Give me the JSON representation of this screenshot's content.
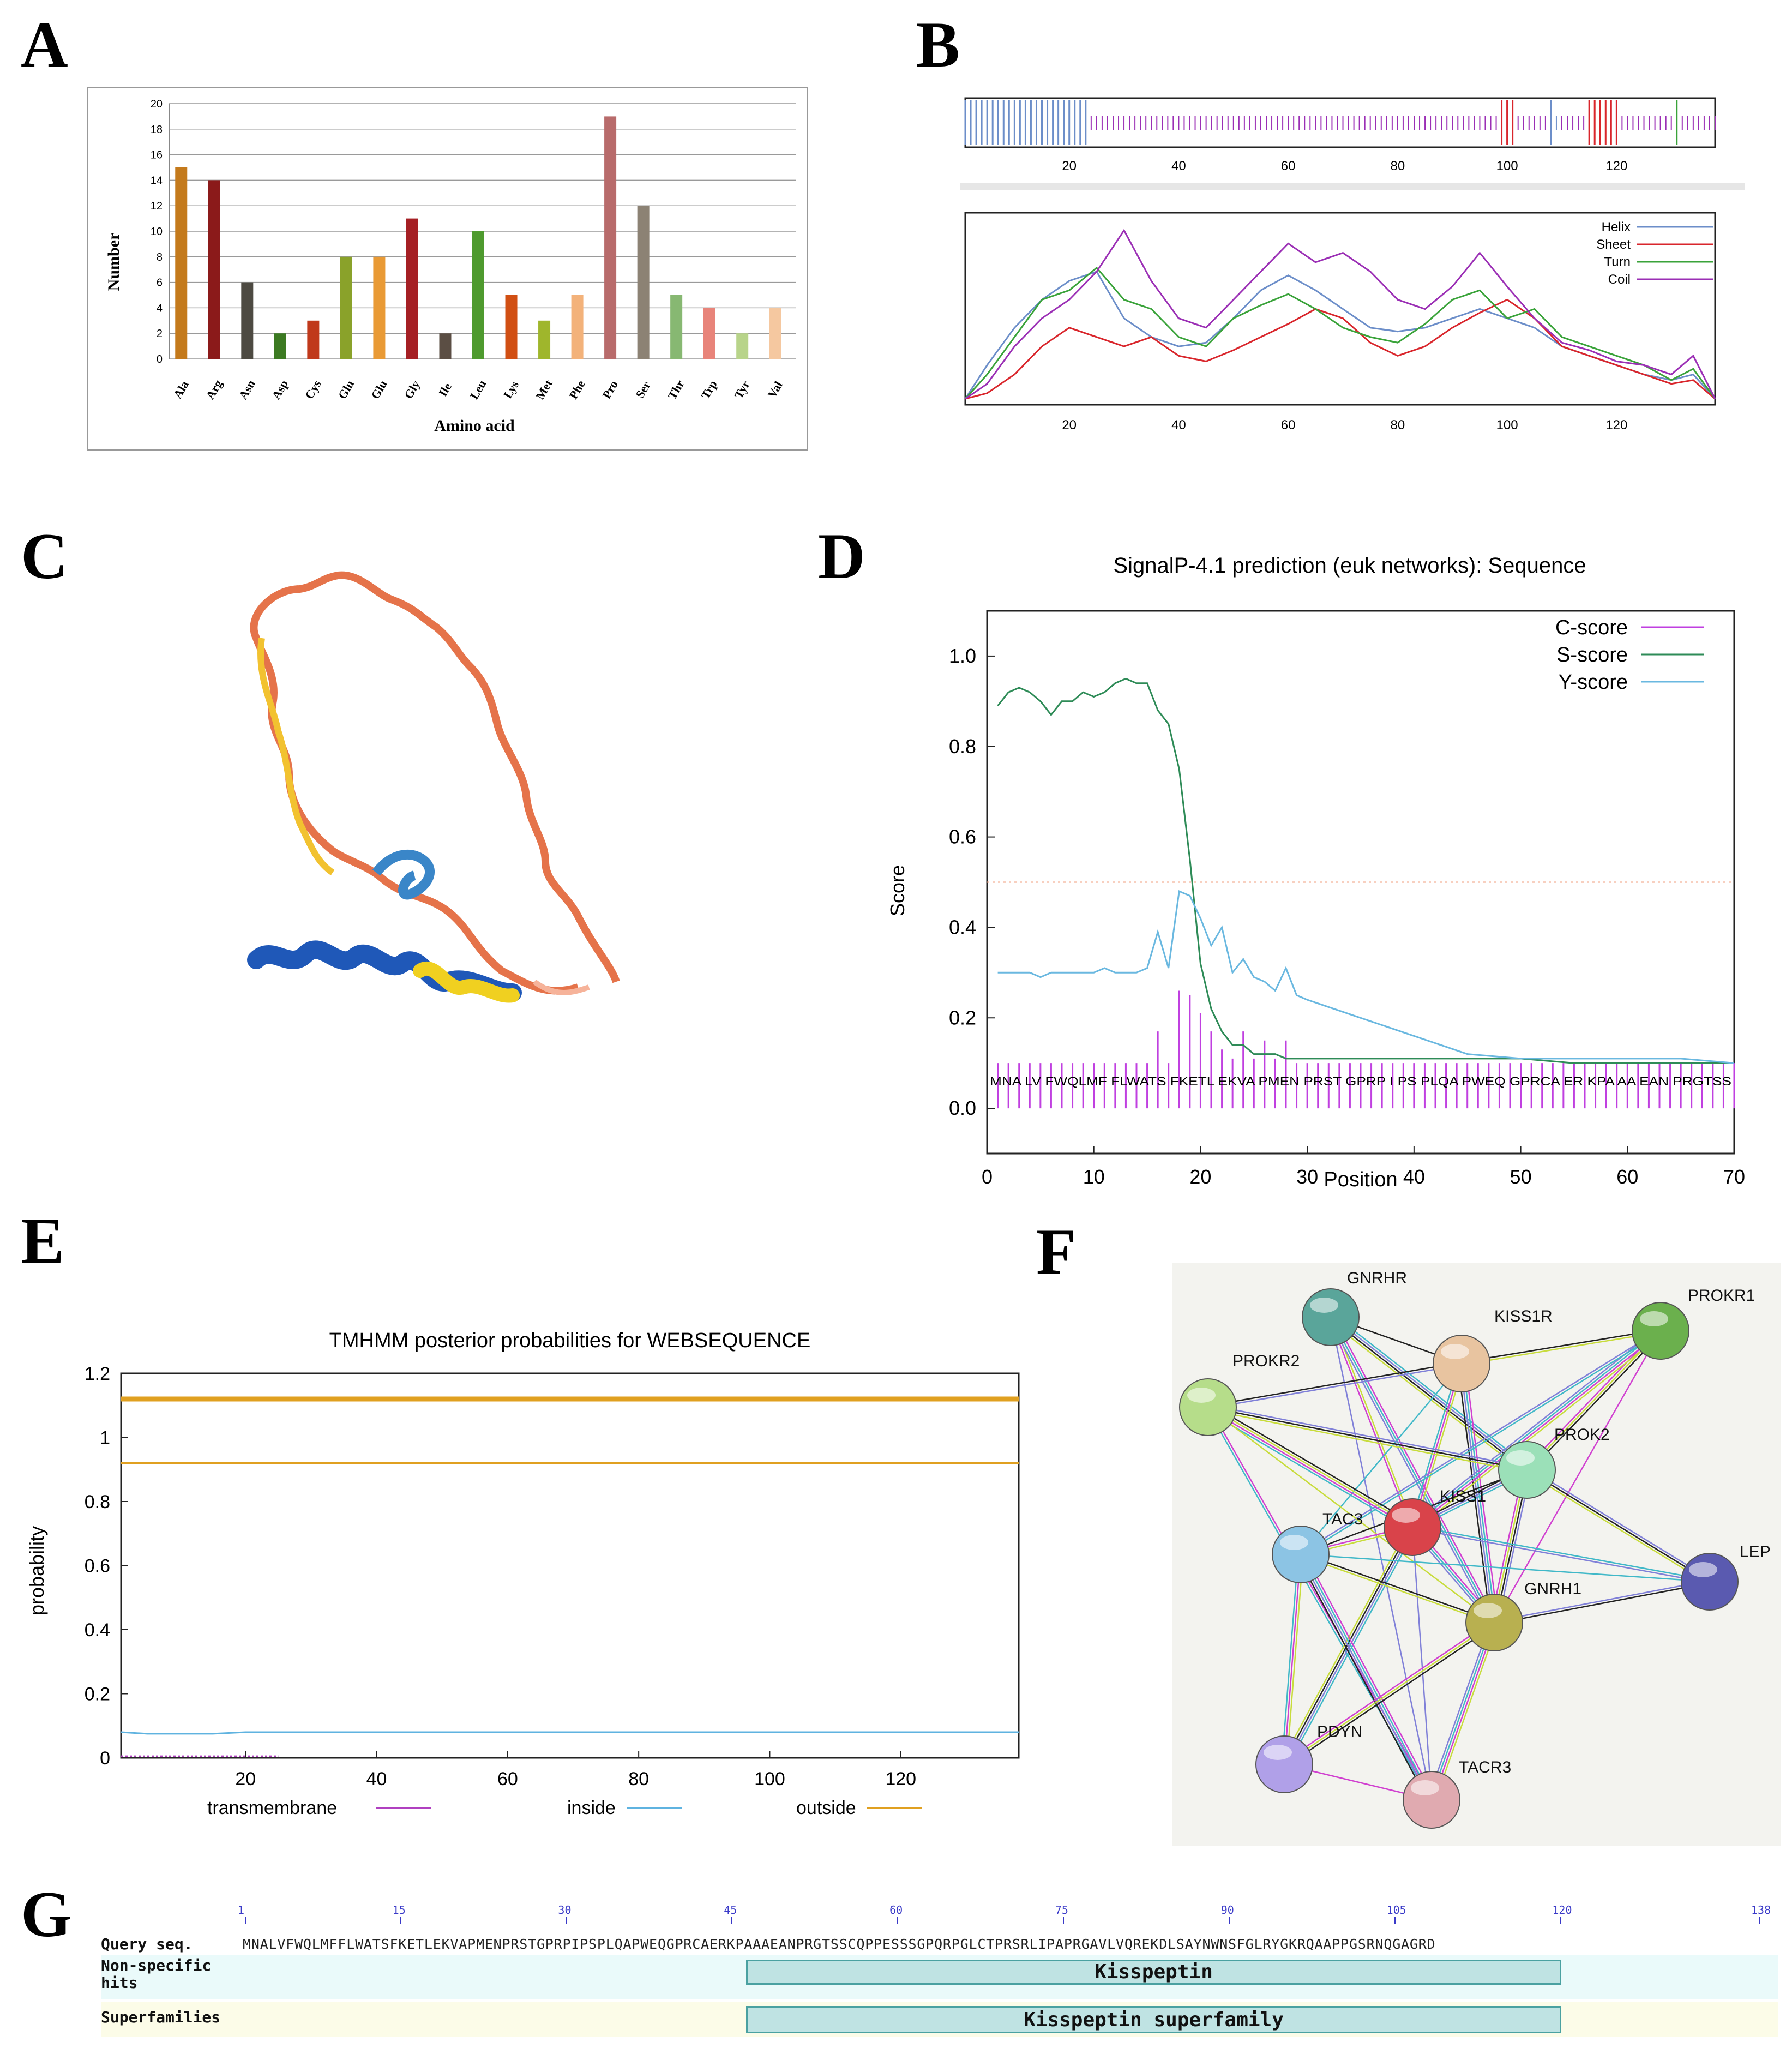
{
  "panel_labels": {
    "a": "A",
    "b": "B",
    "c": "C",
    "d": "D",
    "e": "E",
    "f": "F",
    "g": "G"
  },
  "colors": {
    "helix": "#6c8ec9",
    "sheet": "#d9262c",
    "turn": "#3aa33a",
    "coil": "#9b2fb5",
    "c_score": "#c040e0",
    "s_score": "#2e8b57",
    "y_score": "#6ab8e0",
    "tm_inside": "#5fb3e0",
    "tm_outside": "#e0a020",
    "tm_trans": "#b040c0"
  },
  "chart_data": [
    {
      "id": "A",
      "type": "bar",
      "title": "",
      "xlabel": "Amino acid",
      "ylabel": "Number",
      "ylim": [
        0,
        20
      ],
      "yticks": [
        0,
        2,
        4,
        6,
        8,
        10,
        12,
        14,
        16,
        18,
        20
      ],
      "categories": [
        "Ala",
        "Arg",
        "Asn",
        "Asp",
        "Cys",
        "Gln",
        "Glu",
        "Gly",
        "Ile",
        "Leu",
        "Lys",
        "Met",
        "Phe",
        "Pro",
        "Ser",
        "Thr",
        "Trp",
        "Tyr",
        "Val"
      ],
      "values": [
        15,
        14,
        6,
        2,
        3,
        8,
        8,
        11,
        2,
        10,
        5,
        3,
        5,
        19,
        12,
        5,
        4,
        2,
        4
      ],
      "bar_colors": [
        "#c47a1c",
        "#8b1a1a",
        "#4d4a42",
        "#3c7a22",
        "#c0391b",
        "#8aa22a",
        "#e99a35",
        "#a51f24",
        "#5b4e44",
        "#4e9a2e",
        "#d14f13",
        "#9fb62c",
        "#f3b27a",
        "#b86b6b",
        "#8c8274",
        "#87b872",
        "#e8847a",
        "#b8d48a",
        "#f5c8a0"
      ]
    },
    {
      "id": "B",
      "type": "line",
      "title": "",
      "xticks": [
        20,
        40,
        60,
        80,
        100,
        120
      ],
      "xlim": [
        1,
        138
      ],
      "legend": [
        "Helix",
        "Sheet",
        "Turn",
        "Coil"
      ],
      "series": [
        {
          "name": "Helix",
          "x": [
            1,
            5,
            10,
            15,
            20,
            25,
            30,
            35,
            40,
            45,
            50,
            55,
            60,
            65,
            70,
            75,
            80,
            85,
            90,
            95,
            100,
            105,
            110,
            115,
            120,
            125,
            130,
            134,
            138
          ],
          "y": [
            0.02,
            0.2,
            0.4,
            0.55,
            0.65,
            0.7,
            0.45,
            0.35,
            0.3,
            0.32,
            0.45,
            0.6,
            0.68,
            0.6,
            0.5,
            0.4,
            0.38,
            0.4,
            0.45,
            0.5,
            0.45,
            0.4,
            0.3,
            0.25,
            0.2,
            0.15,
            0.12,
            0.15,
            0.02
          ]
        },
        {
          "name": "Sheet",
          "x": [
            1,
            5,
            10,
            15,
            20,
            25,
            30,
            35,
            40,
            45,
            50,
            55,
            60,
            65,
            70,
            75,
            80,
            85,
            90,
            95,
            100,
            105,
            110,
            115,
            120,
            125,
            130,
            134,
            138
          ],
          "y": [
            0.02,
            0.05,
            0.15,
            0.3,
            0.4,
            0.35,
            0.3,
            0.35,
            0.25,
            0.22,
            0.28,
            0.35,
            0.42,
            0.5,
            0.45,
            0.32,
            0.25,
            0.3,
            0.4,
            0.48,
            0.55,
            0.45,
            0.3,
            0.25,
            0.2,
            0.15,
            0.1,
            0.12,
            0.02
          ]
        },
        {
          "name": "Turn",
          "x": [
            1,
            5,
            10,
            15,
            20,
            25,
            30,
            35,
            40,
            45,
            50,
            55,
            60,
            65,
            70,
            75,
            80,
            85,
            90,
            95,
            100,
            105,
            110,
            115,
            120,
            125,
            130,
            134,
            138
          ],
          "y": [
            0.02,
            0.15,
            0.35,
            0.55,
            0.6,
            0.72,
            0.55,
            0.5,
            0.35,
            0.3,
            0.45,
            0.52,
            0.58,
            0.5,
            0.4,
            0.35,
            0.32,
            0.42,
            0.55,
            0.6,
            0.45,
            0.5,
            0.35,
            0.3,
            0.25,
            0.2,
            0.12,
            0.18,
            0.02
          ]
        },
        {
          "name": "Coil",
          "x": [
            1,
            5,
            10,
            15,
            20,
            25,
            30,
            35,
            40,
            45,
            50,
            55,
            60,
            65,
            70,
            75,
            80,
            85,
            90,
            95,
            100,
            105,
            110,
            115,
            120,
            125,
            130,
            134,
            138
          ],
          "y": [
            0.02,
            0.1,
            0.3,
            0.45,
            0.55,
            0.7,
            0.92,
            0.65,
            0.45,
            0.4,
            0.55,
            0.7,
            0.85,
            0.75,
            0.8,
            0.7,
            0.55,
            0.5,
            0.62,
            0.8,
            0.62,
            0.45,
            0.32,
            0.28,
            0.22,
            0.2,
            0.15,
            0.25,
            0.02
          ]
        }
      ]
    },
    {
      "id": "D",
      "type": "line",
      "title": "SignalP-4.1 prediction (euk networks): Sequence",
      "xlabel": "Position",
      "ylabel": "Score",
      "xlim": [
        0,
        70
      ],
      "ylim": [
        -0.1,
        1.1
      ],
      "xticks": [
        0,
        10,
        20,
        30,
        40,
        50,
        60,
        70
      ],
      "yticks": [
        0.0,
        0.2,
        0.4,
        0.6,
        0.8,
        1.0
      ],
      "ytick_labels": [
        "0.0",
        "0.2",
        "0.4",
        "0.6",
        "0.8",
        "1.0"
      ],
      "threshold": 0.5,
      "sequence_label": "MNA LV FWQLMF FLWATS FKETL EKVA PMEN PRST GPRP I PS PLQA PWEQ GPRCA ER KPA AA EAN PRGTSS",
      "series": [
        {
          "name": "C-score",
          "x": [
            1,
            2,
            3,
            4,
            5,
            6,
            7,
            8,
            9,
            10,
            11,
            12,
            13,
            14,
            15,
            16,
            17,
            18,
            19,
            20,
            21,
            22,
            23,
            24,
            25,
            26,
            27,
            28,
            29,
            30,
            35,
            40,
            45,
            50,
            55,
            60,
            65,
            70
          ],
          "y": [
            0.1,
            0.1,
            0.1,
            0.1,
            0.1,
            0.1,
            0.1,
            0.1,
            0.1,
            0.1,
            0.1,
            0.1,
            0.1,
            0.1,
            0.1,
            0.17,
            0.1,
            0.26,
            0.25,
            0.21,
            0.17,
            0.13,
            0.11,
            0.17,
            0.11,
            0.15,
            0.11,
            0.15,
            0.1,
            0.1,
            0.1,
            0.1,
            0.1,
            0.1,
            0.1,
            0.1,
            0.1,
            0.1
          ]
        },
        {
          "name": "S-score",
          "x": [
            1,
            2,
            3,
            4,
            5,
            6,
            7,
            8,
            9,
            10,
            11,
            12,
            13,
            14,
            15,
            16,
            17,
            18,
            19,
            20,
            21,
            22,
            23,
            24,
            25,
            26,
            27,
            28,
            29,
            30,
            35,
            40,
            45,
            50,
            55,
            60,
            65,
            70
          ],
          "y": [
            0.89,
            0.92,
            0.93,
            0.92,
            0.9,
            0.87,
            0.9,
            0.9,
            0.92,
            0.91,
            0.92,
            0.94,
            0.95,
            0.94,
            0.94,
            0.88,
            0.85,
            0.75,
            0.55,
            0.32,
            0.22,
            0.17,
            0.14,
            0.14,
            0.12,
            0.12,
            0.12,
            0.11,
            0.11,
            0.11,
            0.11,
            0.11,
            0.11,
            0.11,
            0.1,
            0.1,
            0.1,
            0.1
          ]
        },
        {
          "name": "Y-score",
          "x": [
            1,
            2,
            3,
            4,
            5,
            6,
            7,
            8,
            9,
            10,
            11,
            12,
            13,
            14,
            15,
            16,
            17,
            18,
            19,
            20,
            21,
            22,
            23,
            24,
            25,
            26,
            27,
            28,
            29,
            30,
            35,
            40,
            45,
            50,
            55,
            60,
            65,
            70
          ],
          "y": [
            0.3,
            0.3,
            0.3,
            0.3,
            0.29,
            0.3,
            0.3,
            0.3,
            0.3,
            0.3,
            0.31,
            0.3,
            0.3,
            0.3,
            0.31,
            0.39,
            0.31,
            0.48,
            0.47,
            0.42,
            0.36,
            0.4,
            0.3,
            0.33,
            0.29,
            0.28,
            0.26,
            0.31,
            0.25,
            0.24,
            0.2,
            0.16,
            0.12,
            0.11,
            0.11,
            0.11,
            0.11,
            0.1
          ]
        }
      ],
      "legend": [
        "C-score",
        "S-score",
        "Y-score"
      ]
    },
    {
      "id": "E",
      "type": "line",
      "title": "TMHMM posterior probabilities for WEBSEQUENCE",
      "ylabel": "probability",
      "xlim": [
        1,
        138
      ],
      "ylim": [
        0,
        1.2
      ],
      "xticks": [
        20,
        40,
        60,
        80,
        100,
        120
      ],
      "xtick_labels": [
        "20",
        "40",
        "60",
        "80",
        "100",
        "120"
      ],
      "yticks": [
        0,
        0.2,
        0.4,
        0.6,
        0.8,
        1,
        1.2
      ],
      "ytick_labels": [
        "0",
        "0.2",
        "0.4",
        "0.6",
        "0.8",
        "1",
        "1.2"
      ],
      "series": [
        {
          "name": "transmembrane",
          "x": [
            1,
            25
          ],
          "y": [
            0.005,
            0.005
          ]
        },
        {
          "name": "inside",
          "x": [
            1,
            5,
            15,
            20,
            138
          ],
          "y": [
            0.08,
            0.075,
            0.075,
            0.08,
            0.08
          ]
        },
        {
          "name": "outside",
          "x": [
            1,
            138
          ],
          "y": [
            0.92,
            0.92
          ]
        }
      ],
      "legend": [
        "transmembrane",
        "inside",
        "outside"
      ]
    }
  ],
  "network": {
    "nodes": [
      {
        "id": "GNRHR",
        "label": "GNRHR",
        "color": "#5aa59a"
      },
      {
        "id": "KISS1R",
        "label": "KISS1R",
        "color": "#e8c4a0"
      },
      {
        "id": "PROKR1",
        "label": "PROKR1",
        "color": "#6bb04d"
      },
      {
        "id": "PROKR2",
        "label": "PROKR2",
        "color": "#b6dd8a"
      },
      {
        "id": "PROK2",
        "label": "PROK2",
        "color": "#9be0b8"
      },
      {
        "id": "KISS1",
        "label": "KISS1",
        "color": "#d9434a"
      },
      {
        "id": "TAC3",
        "label": "TAC3",
        "color": "#8cc4e4"
      },
      {
        "id": "LEP",
        "label": "LEP",
        "color": "#5a5ab0"
      },
      {
        "id": "GNRH1",
        "label": "GNRH1",
        "color": "#b8b050"
      },
      {
        "id": "PDYN",
        "label": "PDYN",
        "color": "#b0a0e8"
      },
      {
        "id": "TACR3",
        "label": "TACR3",
        "color": "#e0aab0"
      }
    ]
  },
  "cdd": {
    "ruler_numbers": [
      "1",
      "15",
      "30",
      "45",
      "60",
      "75",
      "90",
      "105",
      "120",
      "138"
    ],
    "query_label": "Query seq.",
    "nonspecific_label_1": "Non-specific",
    "nonspecific_label_2": "hits",
    "superfamilies_label": "Superfamilies",
    "sequence": "MNALVFWQLMFFLWATSFKETLEKVAPMENPRSTGPRPIPSPLQAPWEQGPRCAERKPAAAEANPRGTSSCQPPESSSGPQRPGLCTPRSRLIPAPRGAVLVQREKDLSAYNWNSFGLRYGKRQAAPPGSRNQGAGRD",
    "hit_label": "Kisspeptin",
    "superfamily_label": "Kisspeptin superfamily"
  }
}
